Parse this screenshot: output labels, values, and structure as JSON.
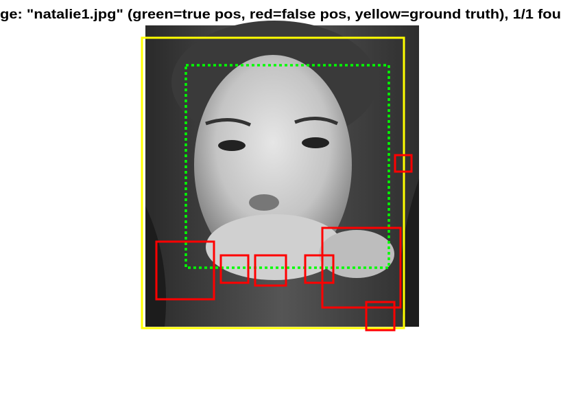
{
  "figure": {
    "title": "ge: \"natalie1.jpg\" (green=true pos, red=false pos, yellow=ground truth), 1/1 fou"
  }
}
